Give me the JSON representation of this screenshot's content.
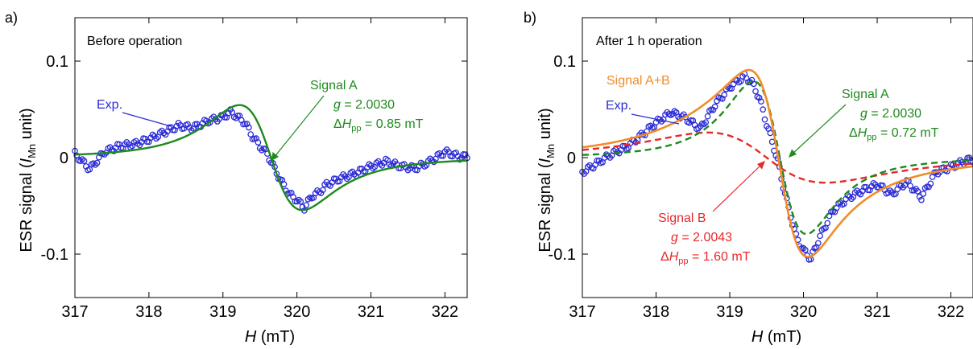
{
  "figure": {
    "panel_a_label": "a)",
    "panel_b_label": "b)",
    "ylabel_main": "ESR signal (",
    "ylabel_italic": "I",
    "ylabel_sub": "Mn",
    "ylabel_end": " unit)",
    "xlabel_italic": "H",
    "xlabel_end": " (mT)"
  },
  "colors": {
    "exp": "#2b2bd6",
    "signal_a": "#1e8a1e",
    "signal_b": "#e8282a",
    "signal_ab": "#f28c28",
    "axis": "#000000"
  },
  "chart_data": [
    {
      "type": "line",
      "panel": "a",
      "condition": "Before operation",
      "xlim": [
        317,
        322.3
      ],
      "ylim": [
        -0.145,
        0.145
      ],
      "xticks": [
        317,
        318,
        319,
        320,
        321,
        322
      ],
      "yticks": [
        -0.1,
        0,
        0.1
      ],
      "ytick_labels": [
        "-0.1",
        "0",
        "0.1"
      ],
      "annotations": {
        "exp_label": "Exp.",
        "signal_a": {
          "name": "Signal A",
          "g_label": "g",
          "g_value": " = 2.0030",
          "dh_delta": "Δ",
          "dh_label": "H",
          "dh_sub": "pp",
          "dh_value": " = 0.85 mT"
        }
      },
      "signals": [
        {
          "name": "Signal A",
          "center": 319.65,
          "dhpp": 0.85,
          "amp": 0.044
        }
      ],
      "exp_points": {
        "x": [
          317.0,
          317.2,
          317.4,
          317.6,
          317.8,
          318.0,
          318.2,
          318.4,
          318.6,
          318.8,
          319.0,
          319.1,
          319.2,
          319.3,
          319.4,
          319.5,
          319.6,
          319.7,
          319.8,
          319.9,
          320.0,
          320.1,
          320.2,
          320.3,
          320.4,
          320.6,
          320.8,
          321.0,
          321.2,
          321.4,
          321.6,
          321.8,
          322.0,
          322.2,
          322.3
        ],
        "y": [
          0.004,
          -0.012,
          0.006,
          0.012,
          0.014,
          0.019,
          0.026,
          0.033,
          0.031,
          0.038,
          0.042,
          0.047,
          0.042,
          0.036,
          0.022,
          0.012,
          0.004,
          -0.012,
          -0.026,
          -0.038,
          -0.044,
          -0.052,
          -0.04,
          -0.036,
          -0.028,
          -0.021,
          -0.016,
          -0.009,
          -0.004,
          -0.009,
          -0.011,
          -0.004,
          0.006,
          0.001,
          0.001
        ]
      }
    },
    {
      "type": "line",
      "panel": "b",
      "condition": "After 1 h operation",
      "xlim": [
        317,
        322.3
      ],
      "ylim": [
        -0.145,
        0.145
      ],
      "xticks": [
        317,
        318,
        319,
        320,
        321,
        322
      ],
      "yticks": [
        -0.1,
        0,
        0.1
      ],
      "ytick_labels": [
        "-0.1",
        "0",
        "0.1"
      ],
      "annotations": {
        "exp_label": "Exp.",
        "signal_ab": "Signal A+B",
        "signal_a": {
          "name": "Signal A",
          "g_label": "g",
          "g_value": " = 2.0030",
          "dh_delta": "Δ",
          "dh_label": "H",
          "dh_sub": "pp",
          "dh_value": " = 0.72 mT"
        },
        "signal_b": {
          "name": "Signal B",
          "g_label": "g",
          "g_value": " = 2.0043",
          "dh_delta": "Δ",
          "dh_label": "H",
          "dh_sub": "pp",
          "dh_value": " = 1.60 mT"
        }
      },
      "signals": [
        {
          "name": "Signal A",
          "center": 319.68,
          "dhpp": 0.72,
          "amp": 0.064
        },
        {
          "name": "Signal B",
          "center": 319.5,
          "dhpp": 1.6,
          "amp": 0.021
        }
      ],
      "exp_points": {
        "x": [
          317.0,
          317.2,
          317.4,
          317.6,
          317.8,
          318.0,
          318.2,
          318.4,
          318.6,
          318.8,
          319.0,
          319.1,
          319.2,
          319.3,
          319.4,
          319.5,
          319.6,
          319.65,
          319.7,
          319.8,
          319.9,
          320.0,
          320.1,
          320.2,
          320.3,
          320.4,
          320.6,
          320.8,
          321.0,
          321.2,
          321.4,
          321.6,
          321.8,
          322.0,
          322.2,
          322.3
        ],
        "y": [
          -0.015,
          -0.006,
          0.004,
          0.011,
          0.023,
          0.036,
          0.047,
          0.041,
          0.03,
          0.055,
          0.073,
          0.079,
          0.084,
          0.078,
          0.062,
          0.035,
          0.01,
          -0.003,
          -0.021,
          -0.053,
          -0.082,
          -0.096,
          -0.105,
          -0.086,
          -0.07,
          -0.055,
          -0.042,
          -0.034,
          -0.028,
          -0.038,
          -0.025,
          -0.041,
          -0.015,
          -0.01,
          -0.003,
          -0.002
        ]
      }
    }
  ]
}
